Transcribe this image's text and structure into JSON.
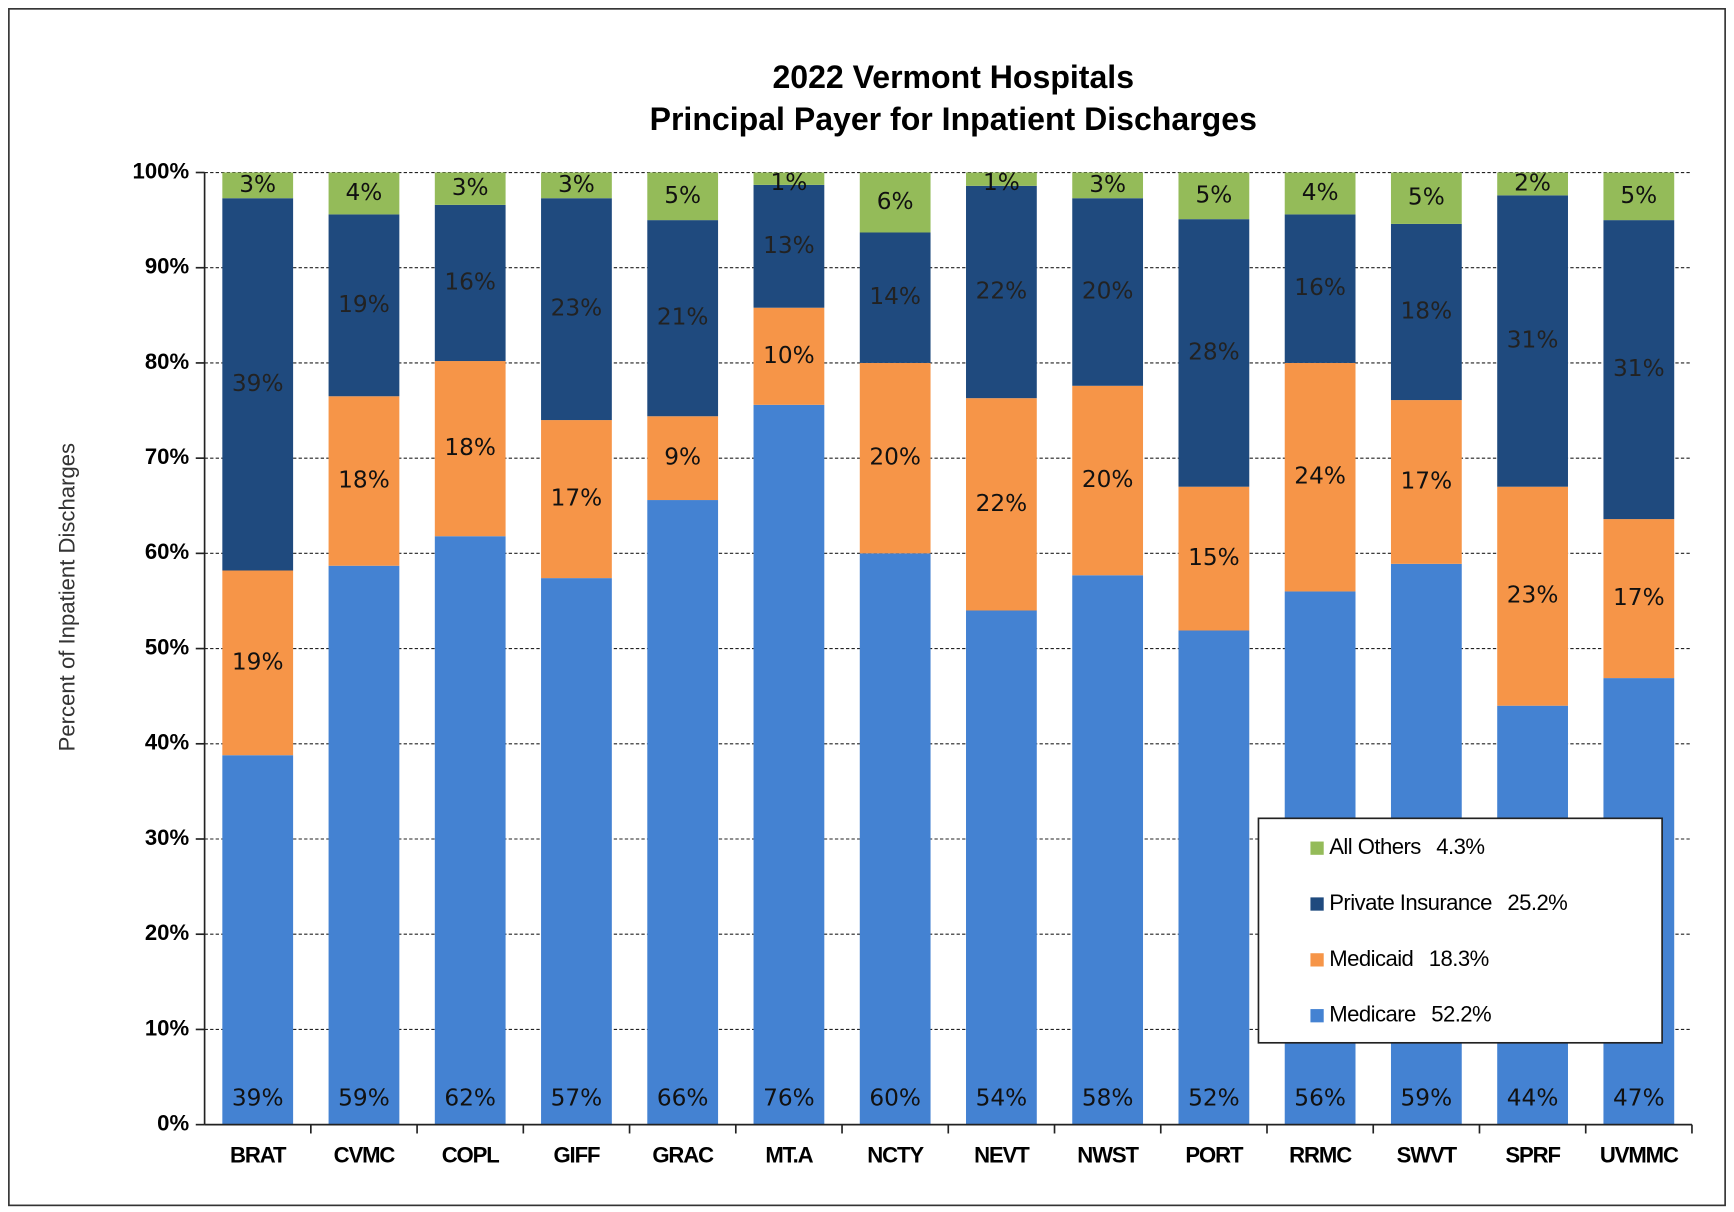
{
  "chart_data": {
    "type": "stacked_bar",
    "title": "2022 Vermont Hospitals",
    "subtitle": "Principal Payer for Inpatient Discharges",
    "y_label": "Percent of Inpatient Discharges",
    "categories": [
      "BRAT",
      "CVMC",
      "COPL",
      "GIFF",
      "GRAC",
      "MT.A",
      "NCTY",
      "NEVT",
      "NWST",
      "PORT",
      "RRMC",
      "SWVT",
      "SPRF",
      "UVMMC"
    ],
    "series": [
      {
        "name": "Medicare",
        "total": 52.2,
        "total_label": "52.2%",
        "color": "#4482d2",
        "values": [
          38.8,
          58.7,
          61.8,
          57.4,
          65.6,
          75.6,
          60.0,
          54.0,
          57.7,
          51.9,
          56.0,
          58.9,
          44.0,
          46.9
        ],
        "value_labels": [
          "39%",
          "59%",
          "62%",
          "57%",
          "66%",
          "76%",
          "60%",
          "54%",
          "58%",
          "52%",
          "56%",
          "59%",
          "44%",
          "47%"
        ]
      },
      {
        "name": "Medicaid",
        "total": 18.3,
        "total_label": "18.3%",
        "color": "#f69548",
        "values": [
          19.4,
          17.8,
          18.4,
          16.6,
          8.8,
          10.2,
          20.0,
          22.3,
          19.9,
          15.1,
          24.0,
          17.2,
          23.0,
          16.7
        ],
        "value_labels": [
          "19%",
          "18%",
          "18%",
          "17%",
          "9%",
          "10%",
          "20%",
          "22%",
          "20%",
          "15%",
          "24%",
          "17%",
          "23%",
          "17%"
        ]
      },
      {
        "name": "Private Insurance",
        "total": 25.2,
        "total_label": "25.2%",
        "color": "#1f4a7e",
        "values": [
          39.1,
          19.1,
          16.4,
          23.3,
          20.6,
          12.9,
          13.7,
          22.3,
          19.7,
          28.1,
          15.6,
          18.5,
          30.6,
          31.4
        ],
        "value_labels": [
          "39%",
          "19%",
          "16%",
          "23%",
          "21%",
          "13%",
          "14%",
          "22%",
          "20%",
          "28%",
          "16%",
          "18%",
          "31%",
          "31%"
        ]
      },
      {
        "name": "All Others",
        "total": 4.3,
        "total_label": "4.3%",
        "color": "#94bb59",
        "values": [
          2.7,
          4.4,
          3.4,
          2.7,
          5.0,
          1.3,
          6.3,
          1.4,
          2.7,
          4.9,
          4.4,
          5.4,
          2.4,
          5.0
        ],
        "value_labels": [
          "3%",
          "4%",
          "3%",
          "3%",
          "5%",
          "1%",
          "6%",
          "1%",
          "3%",
          "5%",
          "4%",
          "5%",
          "2%",
          "5%"
        ]
      }
    ],
    "ylim": [
      0,
      100
    ],
    "yticks": [
      {
        "value": 0,
        "label": "0%"
      },
      {
        "value": 10,
        "label": "10%"
      },
      {
        "value": 20,
        "label": "20%"
      },
      {
        "value": 30,
        "label": "30%"
      },
      {
        "value": 40,
        "label": "40%"
      },
      {
        "value": 50,
        "label": "50%"
      },
      {
        "value": 60,
        "label": "60%"
      },
      {
        "value": 70,
        "label": "70%"
      },
      {
        "value": 80,
        "label": "80%"
      },
      {
        "value": 90,
        "label": "90%"
      },
      {
        "value": 100,
        "label": "100%"
      }
    ],
    "grid": true,
    "legend": "lower right"
  }
}
